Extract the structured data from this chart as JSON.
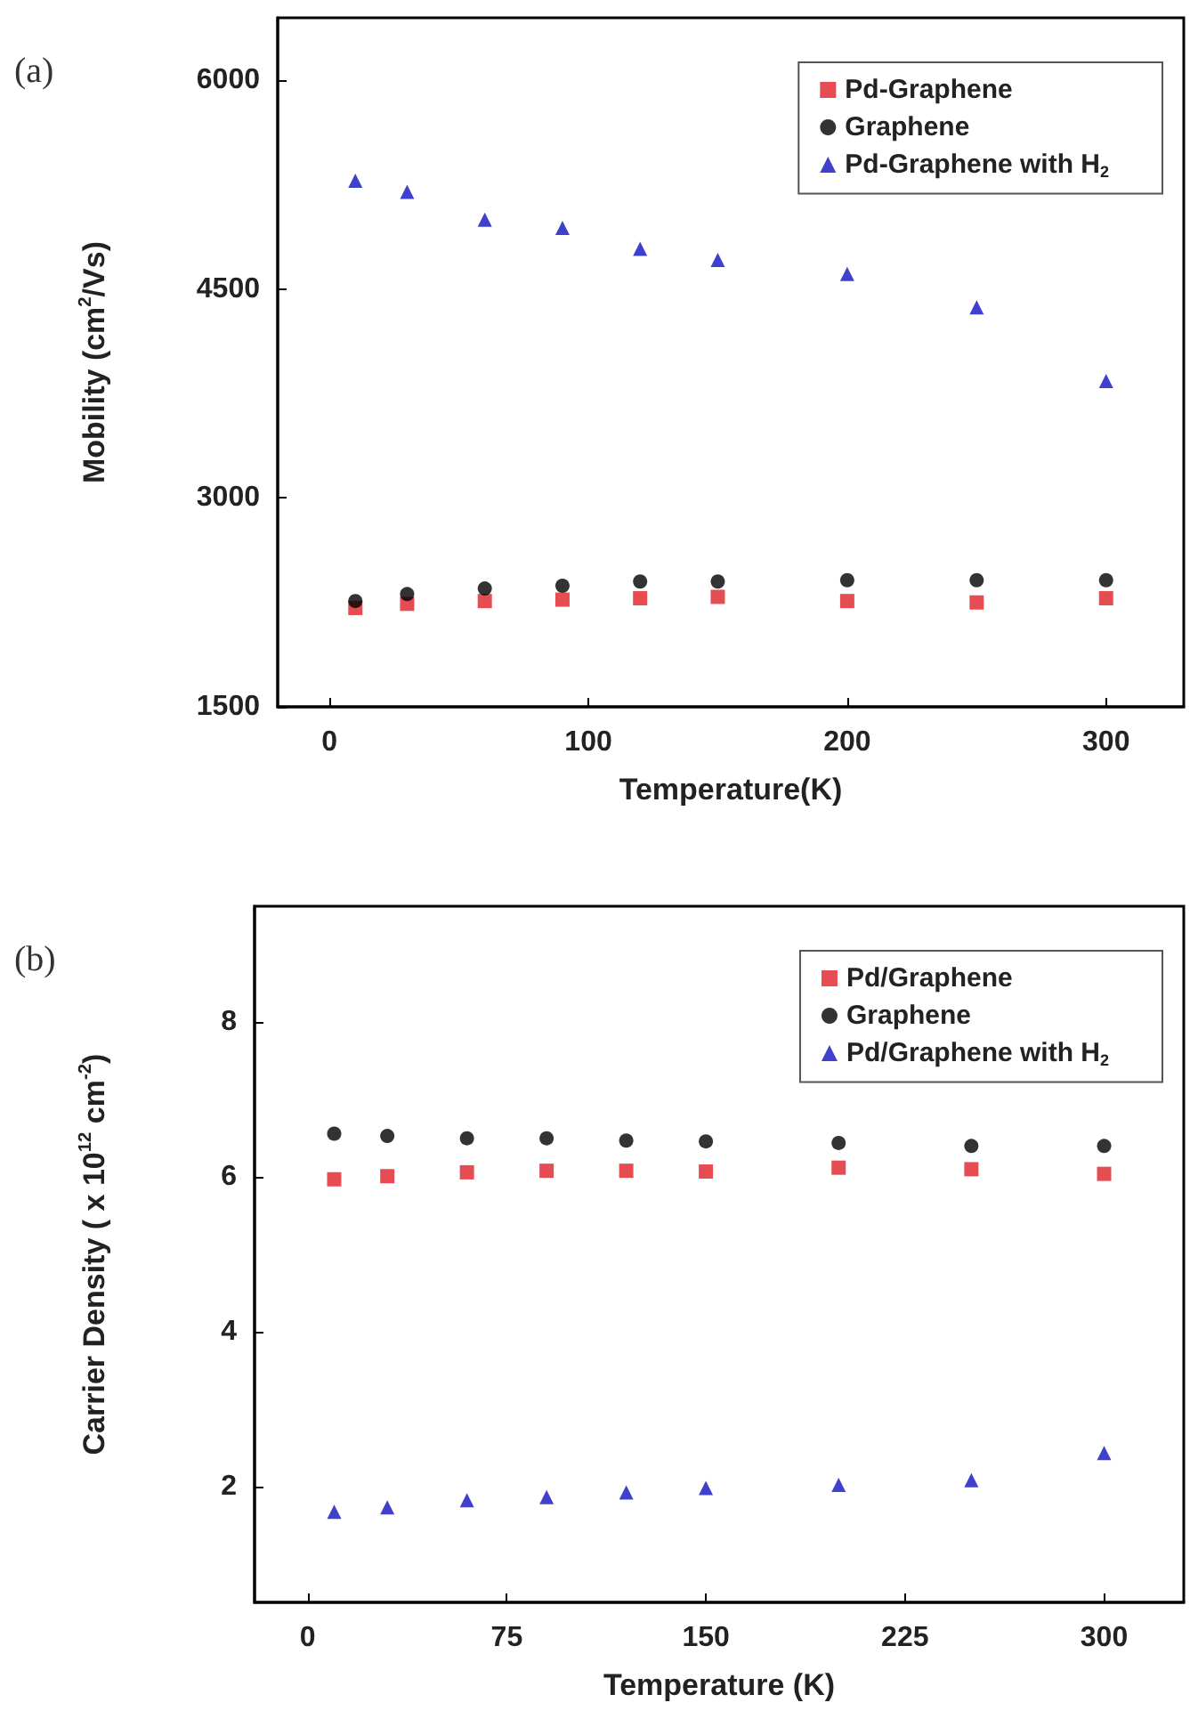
{
  "chart_data": [
    {
      "type": "scatter",
      "annotations": [
        "(a)"
      ],
      "xlabel": "Temperature(K)",
      "ylabel": "Mobility (cm$^{2}$/Vs)",
      "x": [
        10,
        30,
        60,
        90,
        120,
        150,
        200,
        250,
        300
      ],
      "xlim": [
        -20,
        330
      ],
      "xticks": [
        0,
        100,
        200,
        300
      ],
      "ylim": [
        1500,
        6450
      ],
      "yticks": [
        1500,
        3000,
        4500,
        6000
      ],
      "grid": false,
      "legend": "top right",
      "series": [
        {
          "name": "Pd-Graphene",
          "color": "#e02028",
          "marker": "square",
          "values": [
            2210,
            2240,
            2260,
            2270,
            2280,
            2290,
            2260,
            2250,
            2280
          ]
        },
        {
          "name": "Graphene",
          "color": "#000000",
          "marker": "circle",
          "values": [
            2260,
            2310,
            2350,
            2370,
            2400,
            2400,
            2410,
            2410,
            2410
          ]
        },
        {
          "name": "Pd-Graphene with H$_{2}$",
          "color": "#1010c0",
          "marker": "triangle",
          "values": [
            5280,
            5200,
            5000,
            4940,
            4790,
            4710,
            4610,
            4370,
            3840
          ]
        }
      ]
    },
    {
      "type": "scatter",
      "annotations": [
        "(b)"
      ],
      "xlabel": "Temperature (K)",
      "ylabel": "Carrier Density ( x 10$^{12}$ cm$^{-2}$)",
      "x": [
        10,
        30,
        60,
        90,
        120,
        150,
        200,
        250,
        300
      ],
      "xlim": [
        -20,
        330
      ],
      "xticks": [
        0,
        75,
        150,
        225,
        300
      ],
      "ylim": [
        0.5,
        9.5
      ],
      "yticks": [
        2,
        4,
        6,
        8
      ],
      "grid": false,
      "legend": "top right",
      "series": [
        {
          "name": "Pd/Graphene",
          "color": "#e02028",
          "marker": "square",
          "values": [
            5.97,
            6.01,
            6.06,
            6.08,
            6.08,
            6.07,
            6.12,
            6.1,
            6.04
          ]
        },
        {
          "name": "Graphene",
          "color": "#000000",
          "marker": "circle",
          "values": [
            6.56,
            6.53,
            6.5,
            6.5,
            6.47,
            6.46,
            6.44,
            6.4,
            6.4
          ]
        },
        {
          "name": "Pd/Graphene with H$_{2}$",
          "color": "#1010c0",
          "marker": "triangle",
          "values": [
            1.67,
            1.73,
            1.82,
            1.86,
            1.92,
            1.98,
            2.02,
            2.08,
            2.43
          ]
        }
      ]
    }
  ]
}
